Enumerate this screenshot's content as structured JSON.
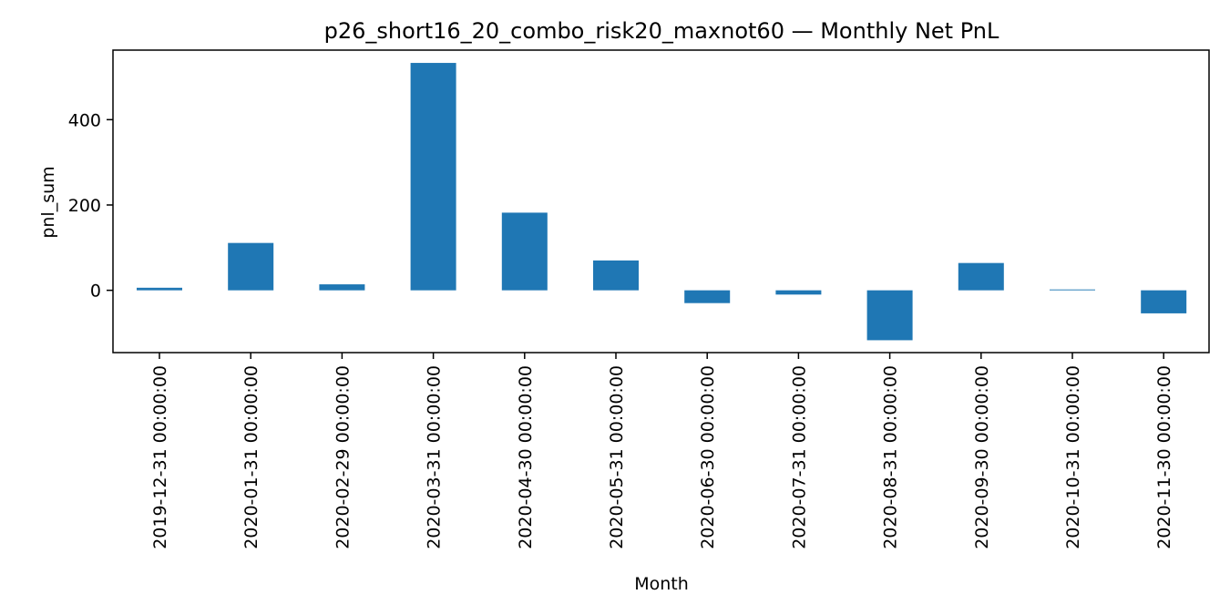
{
  "chart_data": {
    "type": "bar",
    "title": "p26_short16_20_combo_risk20_maxnot60 — Monthly Net PnL",
    "xlabel": "Month",
    "ylabel": "pnl_sum",
    "categories": [
      "2019-12-31 00:00:00",
      "2020-01-31 00:00:00",
      "2020-02-29 00:00:00",
      "2020-03-31 00:00:00",
      "2020-04-30 00:00:00",
      "2020-05-31 00:00:00",
      "2020-06-30 00:00:00",
      "2020-07-31 00:00:00",
      "2020-08-31 00:00:00",
      "2020-09-30 00:00:00",
      "2020-10-31 00:00:00",
      "2020-11-30 00:00:00"
    ],
    "values": [
      6,
      111,
      14,
      533,
      182,
      70,
      -30,
      -10,
      -117,
      64,
      2,
      -54
    ],
    "ylim": [
      -146,
      563
    ],
    "yticks": [
      0,
      200,
      400
    ],
    "grid": false,
    "legend": "none",
    "bar_color": "#1f77b4"
  }
}
